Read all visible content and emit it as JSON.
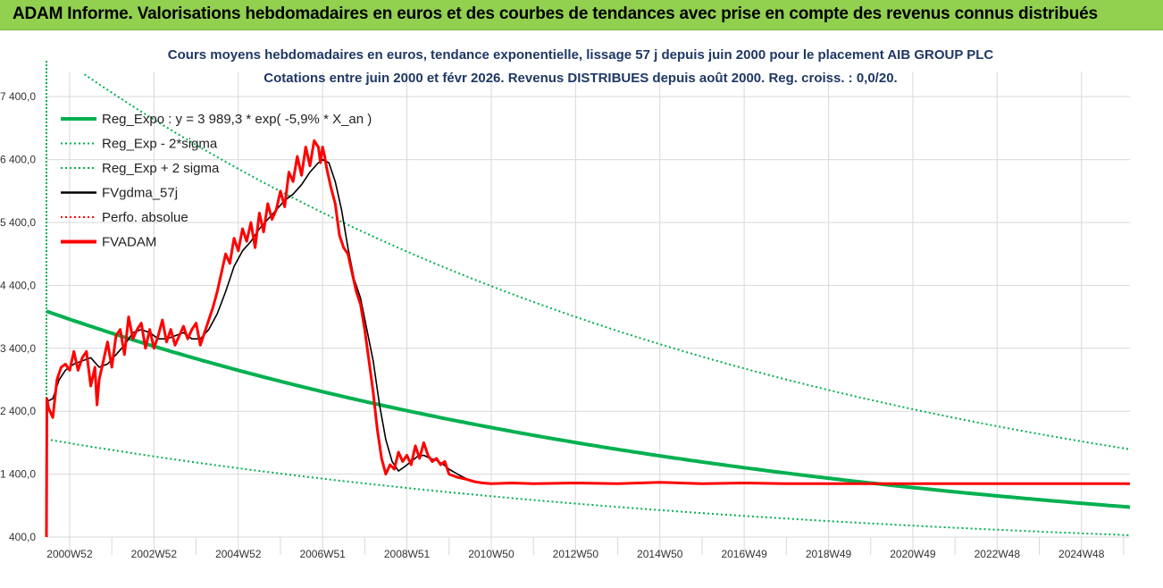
{
  "banner": {
    "title": "ADAM Informe. Valorisations hebdomadaires en euros et des courbes de tendances avec prise en compte des revenus connus distribués",
    "background": "#92d050"
  },
  "chart_data": {
    "type": "line",
    "title_line1": "Cours moyens hebdomadaires en euros, tendance exponentielle, lissage 57 j depuis juin 2000 pour le placement AIB GROUP PLC",
    "title_line2": "Cotations entre juin 2000 et févr 2026. Revenus DISTRIBUES depuis août 2000. Reg. croiss. : 0,0/20.",
    "xlabel": "",
    "ylabel": "",
    "ylim": [
      400,
      7800
    ],
    "xlim": [
      2000.45,
      2026.15
    ],
    "y_ticks": [
      "400,0",
      "1 400,0",
      "2 400,0",
      "3 400,0",
      "4 400,0",
      "5 400,0",
      "6 400,0",
      "7 400,0"
    ],
    "y_tick_values": [
      400,
      1400,
      2400,
      3400,
      4400,
      5400,
      6400,
      7400
    ],
    "x_ticks": [
      "2000W52",
      "2002W52",
      "2004W52",
      "2006W51",
      "2008W51",
      "2010W50",
      "2012W50",
      "2014W50",
      "2016W49",
      "2018W49",
      "2020W49",
      "2022W48",
      "2024W48"
    ],
    "x_tick_years": [
      2001.0,
      2003.0,
      2005.0,
      2007.0,
      2009.0,
      2011.0,
      2013.0,
      2015.0,
      2017.0,
      2019.0,
      2021.0,
      2023.0,
      2025.0
    ],
    "grid": true,
    "legend_position": "top-left",
    "regression": {
      "a": 3989.3,
      "rate": -0.059,
      "x0": 2000.45,
      "sigma_minus_factor": 0.49,
      "sigma_plus_factor": 2.05
    },
    "series": [
      {
        "name": "Reg_Expo : y = 3 989,3 * exp( -5,9% *  X_an )",
        "color": "#00b050",
        "style": "solid-thick",
        "kind": "reg"
      },
      {
        "name": "Reg_Exp - 2*sigma",
        "color": "#00b050",
        "style": "dotted",
        "kind": "reg_minus"
      },
      {
        "name": "Reg_Exp + 2 sigma",
        "color": "#00b050",
        "style": "dotted",
        "kind": "reg_plus"
      },
      {
        "name": "FVgdma_57j",
        "color": "#000000",
        "style": "solid-thin",
        "kind": "data",
        "x": [
          2000.45,
          2000.6,
          2000.75,
          2000.9,
          2001.1,
          2001.3,
          2001.5,
          2001.7,
          2001.9,
          2002.1,
          2002.3,
          2002.5,
          2002.7,
          2002.9,
          2003.1,
          2003.3,
          2003.5,
          2003.7,
          2003.9,
          2004.1,
          2004.3,
          2004.5,
          2004.7,
          2004.9,
          2005.1,
          2005.3,
          2005.5,
          2005.7,
          2005.9,
          2006.1,
          2006.3,
          2006.5,
          2006.7,
          2006.9,
          2007.0,
          2007.15,
          2007.3,
          2007.45,
          2007.6,
          2007.75,
          2007.9,
          2008.05,
          2008.2,
          2008.35,
          2008.5,
          2008.65,
          2008.8,
          2008.95,
          2009.1,
          2009.25,
          2009.4,
          2009.55,
          2009.7,
          2009.85,
          2010.0,
          2010.2,
          2010.4,
          2010.6,
          2010.8,
          2011.0,
          2011.3
        ],
        "y": [
          2550,
          2600,
          2900,
          3050,
          3150,
          3200,
          3250,
          3100,
          3150,
          3300,
          3450,
          3650,
          3700,
          3650,
          3550,
          3550,
          3600,
          3650,
          3550,
          3550,
          3700,
          3950,
          4300,
          4700,
          4950,
          5100,
          5300,
          5450,
          5600,
          5750,
          5850,
          6000,
          6200,
          6350,
          6400,
          6350,
          6050,
          5600,
          5000,
          4500,
          4200,
          3700,
          3200,
          2500,
          1950,
          1600,
          1450,
          1520,
          1600,
          1680,
          1700,
          1650,
          1620,
          1560,
          1480,
          1400,
          1330,
          1280,
          1260,
          1250,
          1250
        ]
      },
      {
        "name": "Perfo. absolue",
        "color": "#ff0000",
        "style": "dotted",
        "kind": "perf"
      },
      {
        "name": "FVADAM",
        "color": "#ff0000",
        "style": "solid-thick",
        "kind": "data",
        "x": [
          2000.45,
          2000.46,
          2000.5,
          2000.6,
          2000.7,
          2000.8,
          2000.9,
          2001.0,
          2001.1,
          2001.2,
          2001.3,
          2001.4,
          2001.5,
          2001.6,
          2001.65,
          2001.7,
          2001.8,
          2001.9,
          2002.0,
          2002.1,
          2002.2,
          2002.3,
          2002.4,
          2002.5,
          2002.6,
          2002.7,
          2002.8,
          2002.9,
          2003.0,
          2003.1,
          2003.2,
          2003.3,
          2003.4,
          2003.5,
          2003.6,
          2003.7,
          2003.8,
          2003.9,
          2004.0,
          2004.1,
          2004.2,
          2004.3,
          2004.4,
          2004.5,
          2004.6,
          2004.7,
          2004.8,
          2004.9,
          2005.0,
          2005.1,
          2005.2,
          2005.3,
          2005.4,
          2005.5,
          2005.6,
          2005.7,
          2005.8,
          2005.9,
          2006.0,
          2006.1,
          2006.2,
          2006.3,
          2006.4,
          2006.5,
          2006.6,
          2006.7,
          2006.8,
          2006.9,
          2006.95,
          2007.0,
          2007.05,
          2007.1,
          2007.2,
          2007.3,
          2007.4,
          2007.5,
          2007.6,
          2007.7,
          2007.8,
          2007.9,
          2008.0,
          2008.1,
          2008.2,
          2008.3,
          2008.4,
          2008.5,
          2008.6,
          2008.7,
          2008.8,
          2008.9,
          2009.0,
          2009.1,
          2009.2,
          2009.3,
          2009.4,
          2009.5,
          2009.6,
          2009.7,
          2009.8,
          2009.9,
          2010.0,
          2010.2,
          2010.4,
          2010.6,
          2010.8,
          2011.0,
          2011.5,
          2012.0,
          2013.0,
          2014.0,
          2015.0,
          2016.0,
          2017.0,
          2018.0,
          2019.0,
          2020.0,
          2021.0,
          2022.0,
          2023.0,
          2024.0,
          2025.0,
          2026.15
        ],
        "y": [
          400,
          2600,
          2450,
          2300,
          2900,
          3100,
          3150,
          3050,
          3350,
          3050,
          3250,
          3350,
          2800,
          3100,
          2500,
          2900,
          3200,
          3500,
          3100,
          3600,
          3700,
          3300,
          3900,
          3550,
          3700,
          3800,
          3400,
          3700,
          3400,
          3600,
          3850,
          3500,
          3700,
          3450,
          3600,
          3750,
          3550,
          3700,
          3800,
          3450,
          3650,
          3850,
          4050,
          4300,
          4600,
          4900,
          4750,
          5150,
          4950,
          5300,
          5100,
          5400,
          5000,
          5550,
          5250,
          5700,
          5450,
          5600,
          5900,
          5650,
          6200,
          6050,
          6450,
          6150,
          6600,
          6300,
          6700,
          6600,
          6350,
          6600,
          6450,
          6250,
          5950,
          5700,
          5200,
          5000,
          4900,
          4600,
          4300,
          4100,
          3700,
          3200,
          2700,
          2100,
          1650,
          1400,
          1550,
          1480,
          1750,
          1600,
          1700,
          1550,
          1850,
          1650,
          1900,
          1700,
          1600,
          1650,
          1550,
          1600,
          1400,
          1350,
          1320,
          1280,
          1260,
          1250,
          1260,
          1250,
          1260,
          1250,
          1270,
          1250,
          1260,
          1250,
          1250,
          1250,
          1250,
          1250,
          1250,
          1250,
          1250,
          1250
        ]
      }
    ]
  }
}
